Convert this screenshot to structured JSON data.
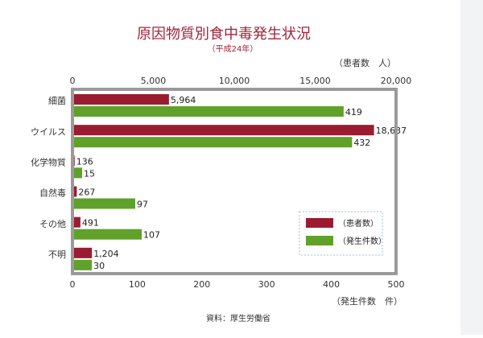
{
  "chart_data": {
    "type": "bar",
    "title": "原因物質別食中毒発生状況",
    "subtitle": "（平成24年）",
    "categories": [
      "細菌",
      "ウイルス",
      "化学物質",
      "自然毒",
      "その他",
      "不明"
    ],
    "top_axis": {
      "label": "（患者数　人）",
      "range": [
        0,
        20000
      ],
      "ticks": [
        "0",
        "5,000",
        "10,000",
        "15,000",
        "20,000"
      ]
    },
    "bottom_axis": {
      "label": "（発生件数　件）",
      "range": [
        0,
        500
      ],
      "ticks": [
        "0",
        "100",
        "200",
        "300",
        "400",
        "500"
      ]
    },
    "series": [
      {
        "name": "（患者数）",
        "axis": "top",
        "color": "#9b1b30",
        "values": [
          5964,
          18637,
          136,
          267,
          491,
          1204
        ],
        "labels": [
          "5,964",
          "18,637",
          "136",
          "267",
          "491",
          "1,204"
        ]
      },
      {
        "name": "（発生件数）",
        "axis": "bottom",
        "color": "#5fa12a",
        "values": [
          419,
          432,
          15,
          97,
          107,
          30
        ],
        "labels": [
          "419",
          "432",
          "15",
          "97",
          "107",
          "30"
        ]
      }
    ],
    "legend": "bottom-right",
    "source": "資料：厚生労働省"
  }
}
